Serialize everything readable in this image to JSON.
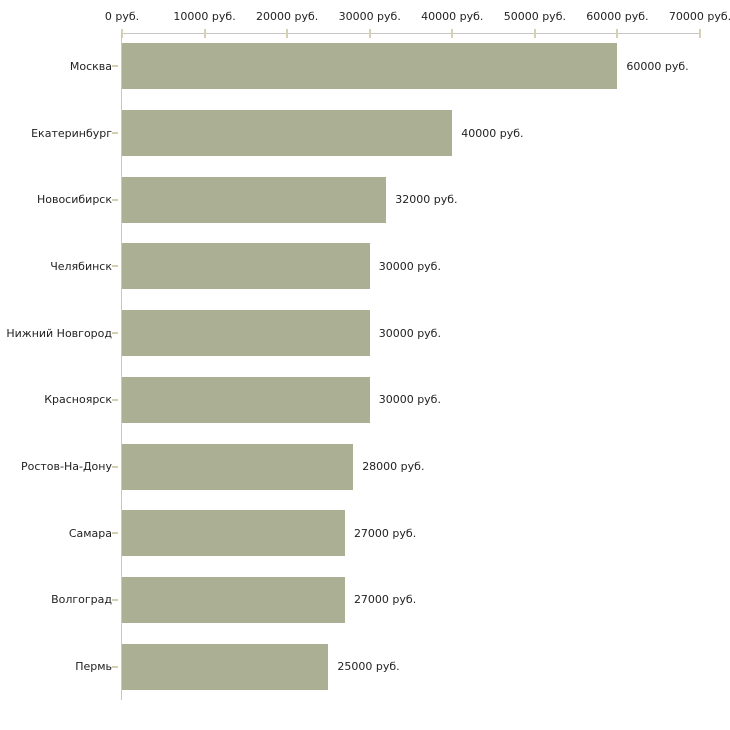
{
  "chart_data": {
    "type": "bar",
    "orientation": "horizontal",
    "title": "",
    "xlabel": "",
    "ylabel": "",
    "unit": "руб.",
    "xlim": [
      0,
      70000
    ],
    "grid": false,
    "legend": "none",
    "x_tick_values": [
      0,
      10000,
      20000,
      30000,
      40000,
      50000,
      60000,
      70000
    ],
    "x_tick_labels": [
      "0 руб.",
      "10000 руб.",
      "20000 руб.",
      "30000 руб.",
      "40000 руб.",
      "50000 руб.",
      "60000 руб.",
      "70000 руб."
    ],
    "categories": [
      "Москва",
      "Екатеринбург",
      "Новосибирск",
      "Челябинск",
      "Нижний Новгород",
      "Красноярск",
      "Ростов-На-Дону",
      "Самара",
      "Волгоград",
      "Пермь"
    ],
    "values": [
      60000,
      40000,
      32000,
      30000,
      30000,
      30000,
      28000,
      27000,
      27000,
      25000
    ],
    "rows": [
      {
        "label": "Москва",
        "value": 60000,
        "value_label": "60000 руб."
      },
      {
        "label": "Екатеринбург",
        "value": 40000,
        "value_label": "40000 руб."
      },
      {
        "label": "Новосибирск",
        "value": 32000,
        "value_label": "32000 руб."
      },
      {
        "label": "Челябинск",
        "value": 30000,
        "value_label": "30000 руб."
      },
      {
        "label": "Нижний Новгород",
        "value": 30000,
        "value_label": "30000 руб."
      },
      {
        "label": "Красноярск",
        "value": 30000,
        "value_label": "30000 руб."
      },
      {
        "label": "Ростов-На-Дону",
        "value": 28000,
        "value_label": "28000 руб."
      },
      {
        "label": "Самара",
        "value": 27000,
        "value_label": "27000 руб."
      },
      {
        "label": "Волгоград",
        "value": 27000,
        "value_label": "27000 руб."
      },
      {
        "label": "Пермь",
        "value": 25000,
        "value_label": "25000 руб."
      }
    ],
    "colors": {
      "bar": "#abb095",
      "axis_line": "#c7c7c7",
      "tick_mark": "#d3cfb1",
      "text": "#222222",
      "background": "#ffffff"
    }
  }
}
